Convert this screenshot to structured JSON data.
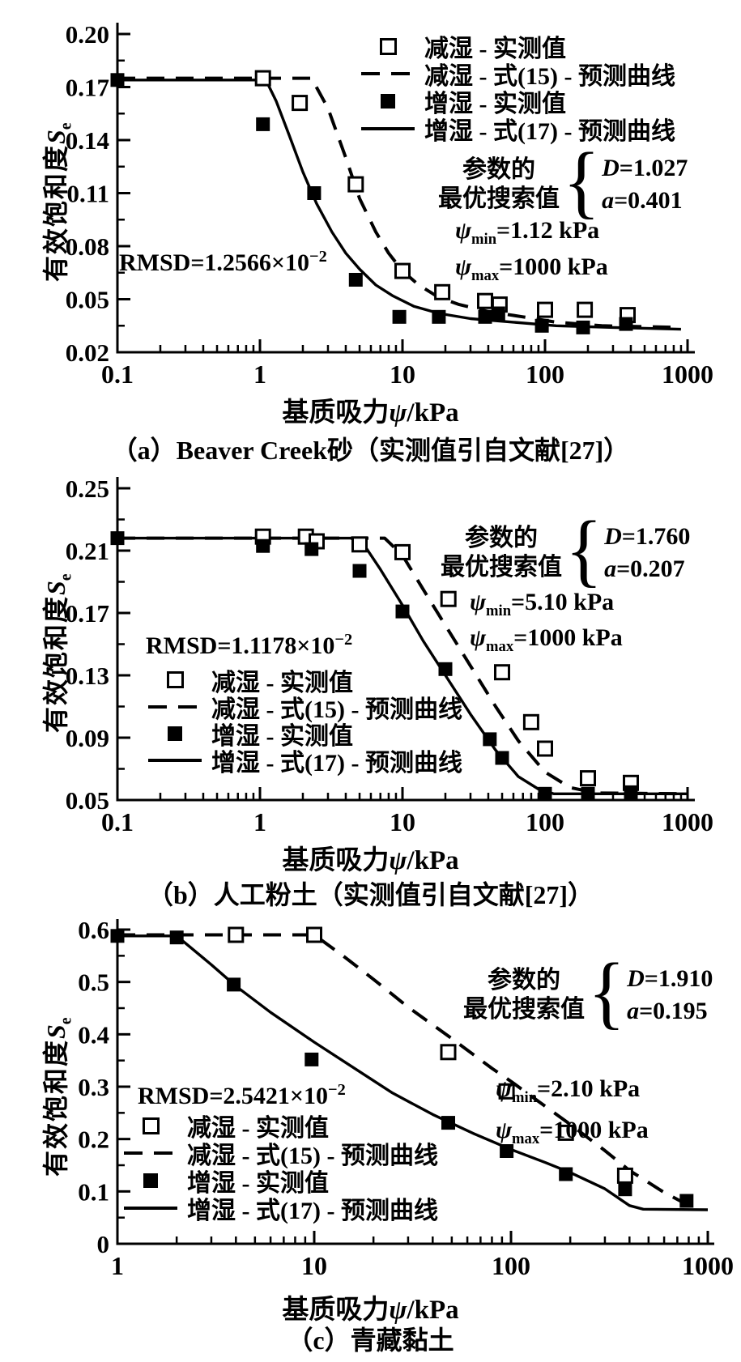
{
  "figure": {
    "charts": [
      {
        "id": "a",
        "caption": "（a）Beaver Creek砂（实测值引自文献[27]）",
        "ylabel": {
          "text": "有效饱和度",
          "var": "S",
          "sub": "e"
        },
        "xlabel": {
          "pre": "基质吸力",
          "var": "ψ",
          "post": "/kPa"
        },
        "rmsd": {
          "main": "RMSD=1.2566×10",
          "sup": "−2"
        },
        "params": {
          "line1": "参数的",
          "line2": "最优搜索值",
          "brace": "{",
          "rows": [
            {
              "var": "D",
              "val": "=1.027"
            },
            {
              "var": "a",
              "val": "=0.401"
            }
          ]
        },
        "psi": [
          {
            "sym": "ψ",
            "sub": "min",
            "val": "=1.12 kPa"
          },
          {
            "sym": "ψ",
            "sub": "max",
            "val": "=1000 kPa"
          }
        ],
        "legend": [
          {
            "marker": "open-square",
            "label": "减湿 - 实测值"
          },
          {
            "marker": "dashed-line",
            "label": "减湿 - 式(15) - 预测曲线"
          },
          {
            "marker": "filled-square",
            "label": "增湿 - 实测值"
          },
          {
            "marker": "solid-line",
            "label": "增湿 - 式(17) - 预测曲线"
          }
        ],
        "chart_data": {
          "type": "line+scatter",
          "x_scale": "log",
          "x_ticks": [
            0.1,
            1,
            10,
            100,
            1000
          ],
          "x_tick_labels": [
            "0.1",
            "1",
            "10",
            "100",
            "1000"
          ],
          "y_ticks": [
            "0.02",
            "0.05",
            "0.08",
            "0.11",
            "0.14",
            "0.17",
            "0.20"
          ],
          "y_range": [
            0.02,
            0.2
          ],
          "series": [
            {
              "name": "减湿-式(15)-预测曲线",
              "style": "dashed",
              "points": [
                [
                  0.1,
                  0.175
                ],
                [
                  2.3,
                  0.175
                ],
                [
                  3,
                  0.158
                ],
                [
                  4,
                  0.13
                ],
                [
                  5,
                  0.107
                ],
                [
                  6.5,
                  0.088
                ],
                [
                  8,
                  0.076
                ],
                [
                  10,
                  0.066
                ],
                [
                  13,
                  0.058
                ],
                [
                  18,
                  0.051
                ],
                [
                  25,
                  0.047
                ],
                [
                  40,
                  0.043
                ],
                [
                  70,
                  0.04
                ],
                [
                  120,
                  0.037
                ],
                [
                  250,
                  0.035
                ],
                [
                  900,
                  0.034
                ]
              ]
            },
            {
              "name": "增湿-式(17)-预测曲线",
              "style": "solid",
              "points": [
                [
                  0.1,
                  0.174
                ],
                [
                  1.1,
                  0.174
                ],
                [
                  1.3,
                  0.162
                ],
                [
                  1.6,
                  0.143
                ],
                [
                  2,
                  0.122
                ],
                [
                  2.5,
                  0.104
                ],
                [
                  3.2,
                  0.088
                ],
                [
                  4,
                  0.076
                ],
                [
                  5,
                  0.067
                ],
                [
                  6.5,
                  0.058
                ],
                [
                  8.5,
                  0.052
                ],
                [
                  12,
                  0.046
                ],
                [
                  18,
                  0.042
                ],
                [
                  30,
                  0.039
                ],
                [
                  60,
                  0.037
                ],
                [
                  120,
                  0.035
                ],
                [
                  300,
                  0.034
                ],
                [
                  900,
                  0.033
                ]
              ]
            },
            {
              "name": "减湿-实测值",
              "style": "open-square",
              "points": [
                [
                  1.05,
                  0.175
                ],
                [
                  1.9,
                  0.161
                ],
                [
                  4.7,
                  0.115
                ],
                [
                  10,
                  0.066
                ],
                [
                  19,
                  0.054
                ],
                [
                  38,
                  0.049
                ],
                [
                  48,
                  0.047
                ],
                [
                  100,
                  0.044
                ],
                [
                  190,
                  0.044
                ],
                [
                  380,
                  0.041
                ]
              ]
            },
            {
              "name": "增湿-实测值",
              "style": "filled-square",
              "points": [
                [
                  0.1,
                  0.174
                ],
                [
                  1.05,
                  0.149
                ],
                [
                  2.4,
                  0.11
                ],
                [
                  4.7,
                  0.061
                ],
                [
                  9.5,
                  0.04
                ],
                [
                  18,
                  0.04
                ],
                [
                  38,
                  0.04
                ],
                [
                  47,
                  0.042
                ],
                [
                  95,
                  0.035
                ],
                [
                  185,
                  0.034
                ],
                [
                  370,
                  0.036
                ]
              ]
            }
          ]
        }
      },
      {
        "id": "b",
        "caption": "（b）人工粉土（实测值引自文献[27]）",
        "ylabel": {
          "text": "有效饱和度",
          "var": "S",
          "sub": "e"
        },
        "xlabel": {
          "pre": "基质吸力",
          "var": "ψ",
          "post": "/kPa"
        },
        "rmsd": {
          "main": "RMSD=1.1178×10",
          "sup": "−2"
        },
        "params": {
          "line1": "参数的",
          "line2": "最优搜索值",
          "brace": "{",
          "rows": [
            {
              "var": "D",
              "val": "=1.760"
            },
            {
              "var": "a",
              "val": "=0.207"
            }
          ]
        },
        "psi": [
          {
            "sym": "ψ",
            "sub": "min",
            "val": "=5.10 kPa"
          },
          {
            "sym": "ψ",
            "sub": "max",
            "val": "=1000 kPa"
          }
        ],
        "legend": [
          {
            "marker": "open-square",
            "label": "减湿 - 实测值"
          },
          {
            "marker": "dashed-line",
            "label": "减湿 - 式(15) - 预测曲线"
          },
          {
            "marker": "filled-square",
            "label": "增湿 - 实测值"
          },
          {
            "marker": "solid-line",
            "label": "增湿 - 式(17) - 预测曲线"
          }
        ],
        "chart_data": {
          "type": "line+scatter",
          "x_scale": "log",
          "x_ticks": [
            0.1,
            1,
            10,
            100,
            1000
          ],
          "x_tick_labels": [
            "0.1",
            "1",
            "10",
            "100",
            "1000"
          ],
          "y_ticks": [
            "0.05",
            "0.09",
            "0.13",
            "0.17",
            "0.21",
            "0.25"
          ],
          "y_range": [
            0.05,
            0.25
          ],
          "series": [
            {
              "name": "减湿-式(15)-预测曲线",
              "style": "dashed",
              "points": [
                [
                  0.1,
                  0.218
                ],
                [
                  7.5,
                  0.218
                ],
                [
                  10,
                  0.207
                ],
                [
                  14,
                  0.185
                ],
                [
                  20,
                  0.162
                ],
                [
                  30,
                  0.136
                ],
                [
                  45,
                  0.11
                ],
                [
                  65,
                  0.088
                ],
                [
                  100,
                  0.068
                ],
                [
                  150,
                  0.058
                ],
                [
                  230,
                  0.0545
                ],
                [
                  1000,
                  0.054
                ]
              ]
            },
            {
              "name": "增湿-式(17)-预测曲线",
              "style": "solid",
              "points": [
                [
                  0.1,
                  0.218
                ],
                [
                  5,
                  0.218
                ],
                [
                  7,
                  0.198
                ],
                [
                  10,
                  0.175
                ],
                [
                  14,
                  0.152
                ],
                [
                  20,
                  0.13
                ],
                [
                  30,
                  0.105
                ],
                [
                  45,
                  0.082
                ],
                [
                  65,
                  0.065
                ],
                [
                  90,
                  0.057
                ],
                [
                  115,
                  0.054
                ],
                [
                  1000,
                  0.054
                ]
              ]
            },
            {
              "name": "减湿-实测值",
              "style": "open-square",
              "points": [
                [
                  1.05,
                  0.219
                ],
                [
                  2.1,
                  0.219
                ],
                [
                  2.5,
                  0.216
                ],
                [
                  5,
                  0.214
                ],
                [
                  10,
                  0.209
                ],
                [
                  21,
                  0.179
                ],
                [
                  50,
                  0.132
                ],
                [
                  80,
                  0.1
                ],
                [
                  100,
                  0.083
                ],
                [
                  200,
                  0.064
                ],
                [
                  400,
                  0.061
                ]
              ]
            },
            {
              "name": "增湿-实测值",
              "style": "filled-square",
              "points": [
                [
                  0.1,
                  0.218
                ],
                [
                  1.05,
                  0.213
                ],
                [
                  2.3,
                  0.211
                ],
                [
                  5,
                  0.197
                ],
                [
                  10,
                  0.171
                ],
                [
                  20,
                  0.134
                ],
                [
                  41,
                  0.089
                ],
                [
                  50,
                  0.077
                ],
                [
                  100,
                  0.054
                ],
                [
                  200,
                  0.054
                ],
                [
                  400,
                  0.055
                ]
              ]
            }
          ]
        }
      },
      {
        "id": "c",
        "caption": "（c）青藏黏土",
        "ylabel": {
          "text": "有效饱和度",
          "var": "S",
          "sub": "e"
        },
        "xlabel": {
          "pre": "基质吸力",
          "var": "ψ",
          "post": "/kPa"
        },
        "rmsd": {
          "main": "RMSD=2.5421×10",
          "sup": "−2"
        },
        "params": {
          "line1": "参数的",
          "line2": "最优搜索值",
          "brace": "{",
          "rows": [
            {
              "var": "D",
              "val": "=1.910"
            },
            {
              "var": "a",
              "val": "=0.195"
            }
          ]
        },
        "psi": [
          {
            "sym": "ψ",
            "sub": "min",
            "val": "=2.10 kPa"
          },
          {
            "sym": "ψ",
            "sub": "max",
            "val": "=1000 kPa"
          }
        ],
        "legend": [
          {
            "marker": "open-square",
            "label": "减湿 - 实测值"
          },
          {
            "marker": "dashed-line",
            "label": "减湿 - 式(15) - 预测曲线"
          },
          {
            "marker": "filled-square",
            "label": "增湿 - 实测值"
          },
          {
            "marker": "solid-line",
            "label": "增湿 - 式(17) - 预测曲线"
          }
        ],
        "chart_data": {
          "type": "line+scatter",
          "x_scale": "log",
          "x_ticks": [
            1,
            10,
            100,
            1000
          ],
          "x_tick_labels": [
            "1",
            "10",
            "100",
            "1000"
          ],
          "y_ticks": [
            "0",
            "0.1",
            "0.2",
            "0.3",
            "0.4",
            "0.5",
            "0.6"
          ],
          "y_range": [
            0,
            0.6
          ],
          "series": [
            {
              "name": "减湿-式(15)-预测曲线",
              "style": "dashed",
              "points": [
                [
                  1,
                  0.59
                ],
                [
                  10,
                  0.59
                ],
                [
                  14,
                  0.55
                ],
                [
                  20,
                  0.505
                ],
                [
                  30,
                  0.452
                ],
                [
                  50,
                  0.392
                ],
                [
                  80,
                  0.335
                ],
                [
                  100,
                  0.31
                ],
                [
                  150,
                  0.262
                ],
                [
                  200,
                  0.228
                ],
                [
                  300,
                  0.178
                ],
                [
                  400,
                  0.14
                ],
                [
                  600,
                  0.098
                ],
                [
                  850,
                  0.068
                ]
              ]
            },
            {
              "name": "增湿-式(17)-预测曲线",
              "style": "solid",
              "points": [
                [
                  1,
                  0.588
                ],
                [
                  2,
                  0.588
                ],
                [
                  3,
                  0.533
                ],
                [
                  4,
                  0.492
                ],
                [
                  6,
                  0.442
                ],
                [
                  10,
                  0.385
                ],
                [
                  15,
                  0.342
                ],
                [
                  25,
                  0.288
                ],
                [
                  40,
                  0.247
                ],
                [
                  65,
                  0.21
                ],
                [
                  100,
                  0.18
                ],
                [
                  150,
                  0.155
                ],
                [
                  200,
                  0.136
                ],
                [
                  300,
                  0.105
                ],
                [
                  400,
                  0.073
                ],
                [
                  470,
                  0.066
                ],
                [
                  1000,
                  0.065
                ]
              ]
            },
            {
              "name": "减湿-实测值",
              "style": "open-square",
              "points": [
                [
                  4,
                  0.59
                ],
                [
                  10,
                  0.59
                ],
                [
                  48,
                  0.366
                ],
                [
                  95,
                  0.291
                ],
                [
                  190,
                  0.212
                ],
                [
                  380,
                  0.13
                ]
              ]
            },
            {
              "name": "增湿-实测值",
              "style": "filled-square",
              "points": [
                [
                  1,
                  0.588
                ],
                [
                  2,
                  0.585
                ],
                [
                  3.9,
                  0.495
                ],
                [
                  9.7,
                  0.352
                ],
                [
                  48,
                  0.231
                ],
                [
                  95,
                  0.177
                ],
                [
                  190,
                  0.133
                ],
                [
                  380,
                  0.104
                ],
                [
                  780,
                  0.082
                ]
              ]
            }
          ]
        }
      }
    ],
    "colors": {
      "foreground": "#000000",
      "background": "#ffffff"
    }
  }
}
